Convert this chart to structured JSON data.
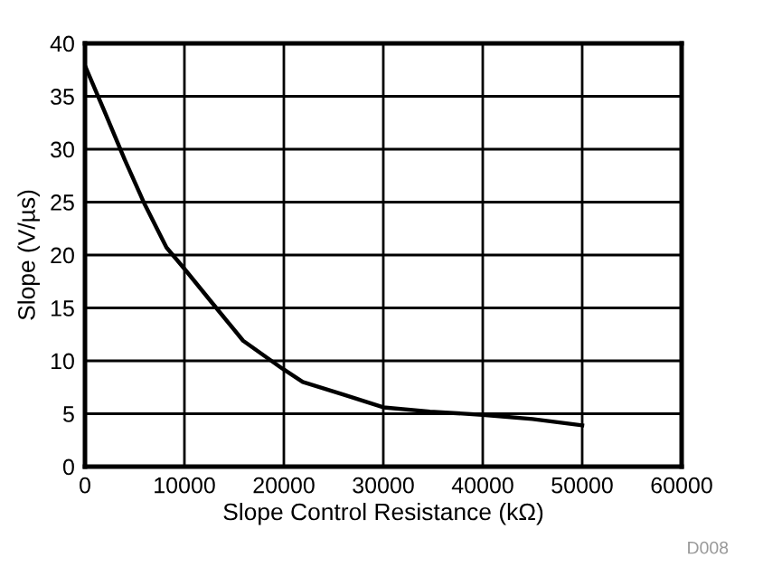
{
  "chart_data": {
    "type": "line",
    "xlabel": "Slope Control Resistance (kΩ)",
    "ylabel": "Slope (V/µs)",
    "x": [
      0,
      2000,
      4000,
      6000,
      8200,
      10000,
      13200,
      15900,
      19800,
      21900,
      26000,
      30000,
      34700,
      40000,
      45000,
      50000
    ],
    "series": [
      {
        "color": "#000000",
        "values": [
          37.9,
          33.5,
          29.0,
          24.8,
          20.7,
          18.7,
          15.0,
          11.9,
          9.3,
          8.0,
          6.8,
          5.6,
          5.2,
          4.9,
          4.5,
          3.9
        ]
      }
    ],
    "xlim": [
      0,
      60000
    ],
    "xticks": [
      0,
      10000,
      20000,
      30000,
      40000,
      50000,
      60000
    ],
    "ylim": [
      0,
      40
    ],
    "yticks": [
      0,
      5,
      10,
      15,
      20,
      25,
      30,
      35,
      40
    ],
    "grid": true,
    "annotations": [
      "D008"
    ]
  }
}
